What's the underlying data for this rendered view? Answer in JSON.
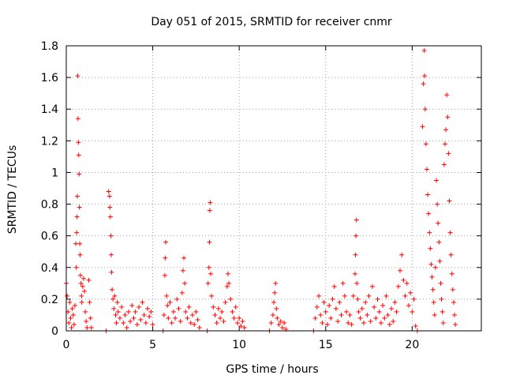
{
  "chart_data": {
    "type": "scatter",
    "title": "Day 051 of 2015, SRMTID for receiver cnmr",
    "xlabel": "GPS time / hours",
    "ylabel": "SRMTID / TECUs",
    "xlim": [
      0,
      24
    ],
    "ylim": [
      0,
      1.8
    ],
    "xticks": [
      0,
      5,
      10,
      15,
      20
    ],
    "yticks": [
      0,
      0.2,
      0.4,
      0.6,
      0.8,
      1,
      1.2,
      1.4,
      1.6,
      1.8
    ],
    "xtick_labels": [
      "0",
      "5",
      "10",
      "15",
      "20"
    ],
    "ytick_labels": [
      "0",
      "0.2",
      "0.4",
      "0.6",
      "0.8",
      "1",
      "1.2",
      "1.4",
      "1.6",
      "1.8"
    ],
    "grid": true,
    "marker": "+",
    "marker_color": "#ff0000",
    "series": [
      {
        "name": "SRMTID",
        "points": [
          [
            0.0,
            0.3
          ],
          [
            0.05,
            0.22
          ],
          [
            0.1,
            0.12
          ],
          [
            0.15,
            0.05
          ],
          [
            0.2,
            0.18
          ],
          [
            0.25,
            0.08
          ],
          [
            0.3,
            0.02
          ],
          [
            0.35,
            0.14
          ],
          [
            0.4,
            0.1
          ],
          [
            0.45,
            0.04
          ],
          [
            0.5,
            0.16
          ],
          [
            0.55,
            0.55
          ],
          [
            0.58,
            0.4
          ],
          [
            0.6,
            0.62
          ],
          [
            0.62,
            0.72
          ],
          [
            0.64,
            0.85
          ],
          [
            0.66,
            1.61
          ],
          [
            0.68,
            1.34
          ],
          [
            0.7,
            1.19
          ],
          [
            0.72,
            1.11
          ],
          [
            0.74,
            0.99
          ],
          [
            0.76,
            0.78
          ],
          [
            0.78,
            0.55
          ],
          [
            0.8,
            0.48
          ],
          [
            0.82,
            0.35
          ],
          [
            0.85,
            0.3
          ],
          [
            0.88,
            0.22
          ],
          [
            0.9,
            0.18
          ],
          [
            0.95,
            0.28
          ],
          [
            1.0,
            0.33
          ],
          [
            1.05,
            0.25
          ],
          [
            1.1,
            0.12
          ],
          [
            1.15,
            0.06
          ],
          [
            1.2,
            0.02
          ],
          [
            1.3,
            0.32
          ],
          [
            1.35,
            0.18
          ],
          [
            1.4,
            0.08
          ],
          [
            1.45,
            0.02
          ],
          [
            2.3,
            0.0
          ],
          [
            2.45,
            0.88
          ],
          [
            2.5,
            0.85
          ],
          [
            2.52,
            0.78
          ],
          [
            2.55,
            0.72
          ],
          [
            2.58,
            0.6
          ],
          [
            2.6,
            0.48
          ],
          [
            2.62,
            0.37
          ],
          [
            2.65,
            0.26
          ],
          [
            2.7,
            0.2
          ],
          [
            2.75,
            0.14
          ],
          [
            2.8,
            0.22
          ],
          [
            2.85,
            0.1
          ],
          [
            2.9,
            0.05
          ],
          [
            2.95,
            0.18
          ],
          [
            3.0,
            0.12
          ],
          [
            3.1,
            0.08
          ],
          [
            3.2,
            0.15
          ],
          [
            3.3,
            0.05
          ],
          [
            3.4,
            0.1
          ],
          [
            3.5,
            0.02
          ],
          [
            3.6,
            0.12
          ],
          [
            3.7,
            0.06
          ],
          [
            3.8,
            0.16
          ],
          [
            3.9,
            0.08
          ],
          [
            4.0,
            0.12
          ],
          [
            4.1,
            0.04
          ],
          [
            4.2,
            0.15
          ],
          [
            4.3,
            0.07
          ],
          [
            4.4,
            0.18
          ],
          [
            4.5,
            0.1
          ],
          [
            4.6,
            0.05
          ],
          [
            4.7,
            0.14
          ],
          [
            4.8,
            0.09
          ],
          [
            4.9,
            0.12
          ],
          [
            5.0,
            0.04
          ],
          [
            5.6,
            0.0
          ],
          [
            5.65,
            0.1
          ],
          [
            5.7,
            0.35
          ],
          [
            5.72,
            0.46
          ],
          [
            5.75,
            0.56
          ],
          [
            5.8,
            0.22
          ],
          [
            5.85,
            0.16
          ],
          [
            5.9,
            0.08
          ],
          [
            6.0,
            0.18
          ],
          [
            6.1,
            0.05
          ],
          [
            6.2,
            0.12
          ],
          [
            6.3,
            0.08
          ],
          [
            6.4,
            0.2
          ],
          [
            6.5,
            0.14
          ],
          [
            6.6,
            0.06
          ],
          [
            6.7,
            0.24
          ],
          [
            6.75,
            0.38
          ],
          [
            6.8,
            0.46
          ],
          [
            6.85,
            0.3
          ],
          [
            6.9,
            0.12
          ],
          [
            7.0,
            0.08
          ],
          [
            7.1,
            0.15
          ],
          [
            7.2,
            0.05
          ],
          [
            7.3,
            0.1
          ],
          [
            7.4,
            0.04
          ],
          [
            7.5,
            0.12
          ],
          [
            7.6,
            0.07
          ],
          [
            7.7,
            0.02
          ],
          [
            8.15,
            0.0
          ],
          [
            8.2,
            0.3
          ],
          [
            8.25,
            0.4
          ],
          [
            8.28,
            0.56
          ],
          [
            8.3,
            0.76
          ],
          [
            8.32,
            0.81
          ],
          [
            8.35,
            0.36
          ],
          [
            8.4,
            0.22
          ],
          [
            8.5,
            0.15
          ],
          [
            8.6,
            0.1
          ],
          [
            8.7,
            0.05
          ],
          [
            8.8,
            0.14
          ],
          [
            8.9,
            0.08
          ],
          [
            9.0,
            0.12
          ],
          [
            9.1,
            0.06
          ],
          [
            9.2,
            0.18
          ],
          [
            9.3,
            0.28
          ],
          [
            9.35,
            0.36
          ],
          [
            9.4,
            0.3
          ],
          [
            9.5,
            0.2
          ],
          [
            9.6,
            0.12
          ],
          [
            9.7,
            0.08
          ],
          [
            9.8,
            0.15
          ],
          [
            9.9,
            0.05
          ],
          [
            10.0,
            0.08
          ],
          [
            10.1,
            0.03
          ],
          [
            10.2,
            0.06
          ],
          [
            10.3,
            0.02
          ],
          [
            11.75,
            0.0
          ],
          [
            11.85,
            0.05
          ],
          [
            11.95,
            0.1
          ],
          [
            12.0,
            0.18
          ],
          [
            12.05,
            0.24
          ],
          [
            12.1,
            0.3
          ],
          [
            12.15,
            0.14
          ],
          [
            12.2,
            0.08
          ],
          [
            12.3,
            0.04
          ],
          [
            12.4,
            0.06
          ],
          [
            12.5,
            0.02
          ],
          [
            12.6,
            0.05
          ],
          [
            12.7,
            0.01
          ],
          [
            14.3,
            0.0
          ],
          [
            14.4,
            0.08
          ],
          [
            14.5,
            0.15
          ],
          [
            14.6,
            0.22
          ],
          [
            14.7,
            0.1
          ],
          [
            14.8,
            0.05
          ],
          [
            14.9,
            0.18
          ],
          [
            15.0,
            0.12
          ],
          [
            15.1,
            0.04
          ],
          [
            15.2,
            0.16
          ],
          [
            15.3,
            0.08
          ],
          [
            15.4,
            0.2
          ],
          [
            15.5,
            0.28
          ],
          [
            15.6,
            0.14
          ],
          [
            15.7,
            0.06
          ],
          [
            15.8,
            0.18
          ],
          [
            15.9,
            0.1
          ],
          [
            16.0,
            0.3
          ],
          [
            16.1,
            0.22
          ],
          [
            16.2,
            0.12
          ],
          [
            16.3,
            0.05
          ],
          [
            16.4,
            0.1
          ],
          [
            16.5,
            0.04
          ],
          [
            16.6,
            0.22
          ],
          [
            16.7,
            0.36
          ],
          [
            16.72,
            0.48
          ],
          [
            16.75,
            0.6
          ],
          [
            16.78,
            0.7
          ],
          [
            16.8,
            0.3
          ],
          [
            16.85,
            0.2
          ],
          [
            16.9,
            0.12
          ],
          [
            17.0,
            0.08
          ],
          [
            17.1,
            0.14
          ],
          [
            17.2,
            0.05
          ],
          [
            17.3,
            0.18
          ],
          [
            17.4,
            0.1
          ],
          [
            17.5,
            0.22
          ],
          [
            17.6,
            0.06
          ],
          [
            17.7,
            0.28
          ],
          [
            17.8,
            0.15
          ],
          [
            17.9,
            0.08
          ],
          [
            18.0,
            0.2
          ],
          [
            18.1,
            0.12
          ],
          [
            18.2,
            0.05
          ],
          [
            18.3,
            0.16
          ],
          [
            18.4,
            0.08
          ],
          [
            18.5,
            0.22
          ],
          [
            18.6,
            0.1
          ],
          [
            18.7,
            0.04
          ],
          [
            18.8,
            0.14
          ],
          [
            18.9,
            0.06
          ],
          [
            19.0,
            0.18
          ],
          [
            19.1,
            0.12
          ],
          [
            19.2,
            0.28
          ],
          [
            19.3,
            0.38
          ],
          [
            19.4,
            0.48
          ],
          [
            19.5,
            0.32
          ],
          [
            19.6,
            0.22
          ],
          [
            19.7,
            0.3
          ],
          [
            19.8,
            0.16
          ],
          [
            19.9,
            0.24
          ],
          [
            20.0,
            0.12
          ],
          [
            20.1,
            0.2
          ],
          [
            20.2,
            0.03
          ],
          [
            20.3,
            0.0
          ],
          [
            20.6,
            1.29
          ],
          [
            20.65,
            1.56
          ],
          [
            20.7,
            1.77
          ],
          [
            20.72,
            1.61
          ],
          [
            20.75,
            1.4
          ],
          [
            20.8,
            1.18
          ],
          [
            20.85,
            1.02
          ],
          [
            20.9,
            0.86
          ],
          [
            20.95,
            0.74
          ],
          [
            21.0,
            0.62
          ],
          [
            21.05,
            0.52
          ],
          [
            21.1,
            0.42
          ],
          [
            21.15,
            0.34
          ],
          [
            21.2,
            0.26
          ],
          [
            21.25,
            0.18
          ],
          [
            21.3,
            0.1
          ],
          [
            21.35,
            0.4
          ],
          [
            21.4,
            0.95
          ],
          [
            21.45,
            0.8
          ],
          [
            21.5,
            0.68
          ],
          [
            21.55,
            0.56
          ],
          [
            21.6,
            0.44
          ],
          [
            21.65,
            0.3
          ],
          [
            21.7,
            0.2
          ],
          [
            21.75,
            0.12
          ],
          [
            21.8,
            0.05
          ],
          [
            21.85,
            1.05
          ],
          [
            21.9,
            1.18
          ],
          [
            21.95,
            1.27
          ],
          [
            22.0,
            1.49
          ],
          [
            22.05,
            1.35
          ],
          [
            22.1,
            1.12
          ],
          [
            22.15,
            0.82
          ],
          [
            22.2,
            0.62
          ],
          [
            22.25,
            0.48
          ],
          [
            22.3,
            0.36
          ],
          [
            22.35,
            0.26
          ],
          [
            22.4,
            0.18
          ],
          [
            22.45,
            0.1
          ],
          [
            22.5,
            0.04
          ]
        ]
      }
    ]
  }
}
